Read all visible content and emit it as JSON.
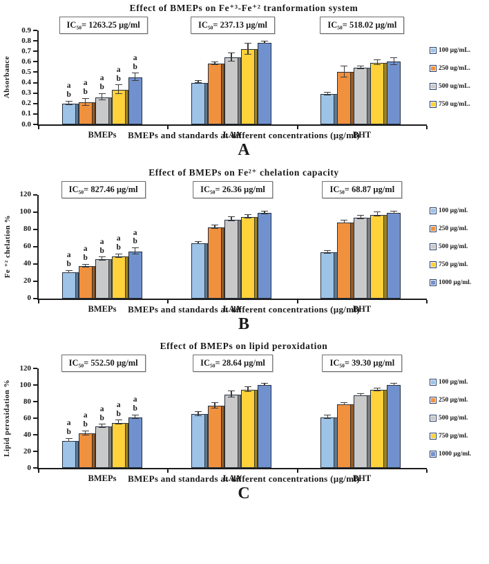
{
  "figure": {
    "panel_letters": [
      "A",
      "B",
      "C"
    ],
    "axis_color": "#1a1a1a",
    "background": "#ffffff"
  },
  "chart_data": [
    {
      "panel_label": "A",
      "type": "bar",
      "title": "Effect of BMEPs on Fe⁺³-Fe⁺² tranformation system",
      "ylabel": "Absorbance",
      "xlabel": "BMEPs and standards at different concentrations (µg/ml)",
      "ylim": [
        0,
        0.9
      ],
      "yticks": [
        "0.9",
        "0.8",
        "0.7",
        "0.6",
        "0.5",
        "0.4",
        "0.3",
        "0.2",
        "0.1",
        "0.0"
      ],
      "grid": false,
      "legend_position": "right",
      "categories": [
        "BMEPs",
        "LAA",
        "BHT"
      ],
      "ic50_boxes": [
        "IC₅₀= 1263.25 µg/ml",
        "IC₅₀= 237.13 µg/ml",
        "IC₅₀= 518.02 µg/ml"
      ],
      "legend": [
        "100 µg/mL.",
        "250 ug/mL.",
        "500 ug/mL.",
        "750 ug/mL."
      ],
      "series": [
        {
          "name": "100 µg/mL.",
          "color": "#9DC3E6",
          "values": [
            0.2,
            0.4,
            0.29
          ],
          "errors": [
            0.015,
            0.005,
            0.01
          ]
        },
        {
          "name": "250 ug/mL.",
          "color": "#F0913E",
          "values": [
            0.21,
            0.58,
            0.5
          ],
          "errors": [
            0.03,
            0.01,
            0.05
          ]
        },
        {
          "name": "500 ug/mL.",
          "color": "#C9C9C9",
          "values": [
            0.26,
            0.64,
            0.54
          ],
          "errors": [
            0.028,
            0.035,
            0.01
          ]
        },
        {
          "name": "750 ug/mL.",
          "color": "#FFD13B",
          "values": [
            0.33,
            0.72,
            0.59
          ],
          "errors": [
            0.038,
            0.05,
            0.02
          ]
        },
        {
          "name": "",
          "color": "#7191CE",
          "values": [
            0.45,
            0.78,
            0.6
          ],
          "errors": [
            0.03,
            0.005,
            0.03
          ]
        }
      ],
      "bar_letters": {
        "category": "BMEPs",
        "letters": [
          "a",
          "b"
        ]
      }
    },
    {
      "panel_label": "B",
      "type": "bar",
      "title": "Effect of BMEPs on Fe²⁺ chelation capacity",
      "ylabel": "Fe ⁺² chelation %",
      "xlabel": "BMEPs and standards at different concentrations (µg/ml)",
      "ylim": [
        0,
        120
      ],
      "yticks": [
        "120",
        "100",
        "80",
        "60",
        "40",
        "20",
        "0"
      ],
      "grid": false,
      "legend_position": "right",
      "categories": [
        "BMEPs",
        "LAA",
        "BHT"
      ],
      "ic50_boxes": [
        "IC₅₀= 827.46 µg/ml",
        "IC₅₀= 26.36 µg/ml",
        "IC₅₀= 68.87 µg/ml"
      ],
      "legend": [
        "100 µg/ml.",
        "250 µg/ml.",
        "500 µg/ml.",
        "750 µg/ml.",
        "1000 µg/ml."
      ],
      "series": [
        {
          "name": "100 µg/ml.",
          "color": "#9DC3E6",
          "values": [
            30,
            63.5,
            53
          ],
          "errors": [
            1,
            0.7,
            1
          ]
        },
        {
          "name": "250 µg/ml.",
          "color": "#F0913E",
          "values": [
            37,
            82,
            88
          ],
          "errors": [
            1,
            1.5,
            1.5
          ]
        },
        {
          "name": "500 µg/ml.",
          "color": "#C9C9C9",
          "values": [
            45,
            91,
            93.5
          ],
          "errors": [
            1.5,
            2,
            1.5
          ]
        },
        {
          "name": "750 µg/ml.",
          "color": "#FFD13B",
          "values": [
            48.5,
            94,
            96.5
          ],
          "errors": [
            1.5,
            1.5,
            2
          ]
        },
        {
          "name": "1000 µg/ml.",
          "color": "#7191CE",
          "values": [
            54,
            98.5,
            99
          ],
          "errors": [
            3,
            1.5,
            0.7
          ]
        }
      ],
      "bar_letters": {
        "category": "BMEPs",
        "letters": [
          "a",
          "b"
        ]
      }
    },
    {
      "panel_label": "C",
      "type": "bar",
      "title": "Effect of BMEPs on lipid peroxidation",
      "ylabel": "Lipid peroxidation %",
      "xlabel": "BMEPs and standards at different concentrations (µg/ml)",
      "ylim": [
        0,
        120
      ],
      "yticks": [
        "120",
        "100",
        "80",
        "60",
        "40",
        "20",
        "0"
      ],
      "grid": false,
      "legend_position": "right",
      "categories": [
        "BMEPs",
        "LAA",
        "BHT"
      ],
      "ic50_boxes": [
        "IC₅₀= 552.50 µg/ml",
        "IC₅₀= 28.64 µg/ml",
        "IC₅₀= 39.30 µg/ml"
      ],
      "legend": [
        "100 µg/ml.",
        "250 µg/ml.",
        "500 µg/ml.",
        "750 µg/ml.",
        "1000 µg/ml."
      ],
      "series": [
        {
          "name": "100 µg/ml.",
          "color": "#9DC3E6",
          "values": [
            33,
            65,
            61
          ],
          "errors": [
            1.5,
            2,
            1.5
          ]
        },
        {
          "name": "250 µg/ml.",
          "color": "#F0913E",
          "values": [
            41.5,
            75,
            77
          ],
          "errors": [
            2,
            3,
            1
          ]
        },
        {
          "name": "500 µg/ml.",
          "color": "#C9C9C9",
          "values": [
            50,
            88.5,
            87.5
          ],
          "errors": [
            1.5,
            3,
            1
          ]
        },
        {
          "name": "750 µg/ml.",
          "color": "#FFD13B",
          "values": [
            54.5,
            94.5,
            94
          ],
          "errors": [
            2,
            2.5,
            1.5
          ]
        },
        {
          "name": "1000 µg/ml.",
          "color": "#7191CE",
          "values": [
            61,
            100,
            100
          ],
          "errors": [
            1.5,
            0.5,
            0.5
          ]
        }
      ],
      "bar_letters": {
        "category": "BMEPs",
        "letters": [
          "a",
          "b"
        ]
      }
    }
  ]
}
